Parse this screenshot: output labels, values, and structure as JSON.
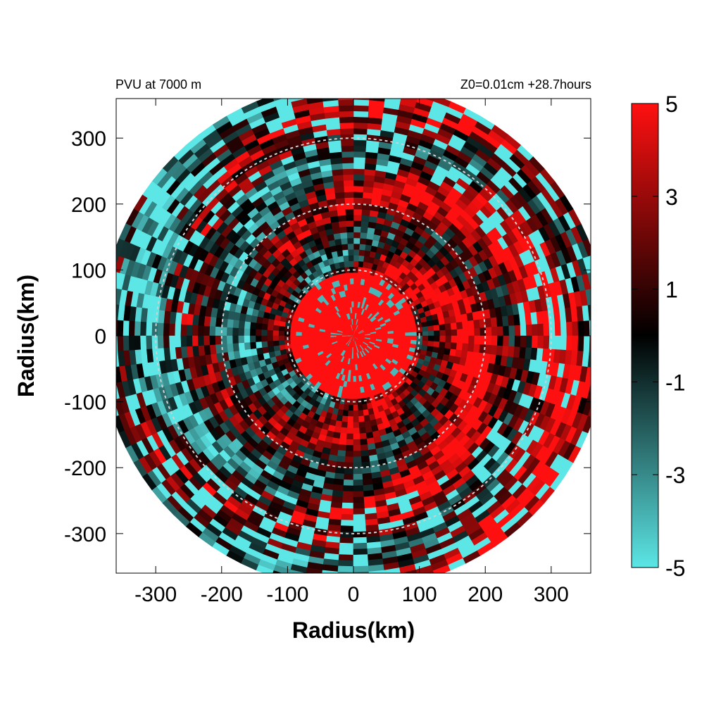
{
  "chart_data": {
    "type": "heatmap",
    "title_left": "PVU at  7000 m",
    "title_right": "Z0=0.01cm  +28.7hours",
    "xlabel": "Radius(km)",
    "ylabel": "Radius(km)",
    "xlim": [
      -360,
      360
    ],
    "ylim": [
      -360,
      360
    ],
    "x_ticks": [
      -300,
      -200,
      -100,
      0,
      100,
      200,
      300
    ],
    "y_ticks": [
      300,
      200,
      100,
      0,
      -100,
      -200,
      -300
    ],
    "x_tick_labels": [
      "-300",
      "-200",
      "-100",
      "0",
      "100",
      "200",
      "300"
    ],
    "y_tick_labels": [
      "300",
      "200",
      "100",
      "0",
      "-100",
      "-200",
      "-300"
    ],
    "domain_radius_km": 385,
    "reference_circles_km": [
      100,
      200,
      300
    ],
    "grid": false,
    "colorbar": {
      "range": [
        -5,
        5
      ],
      "tick_labels": [
        "5",
        "3",
        "1",
        "-1",
        "-3",
        "-5"
      ],
      "tick_values": [
        5,
        3,
        1,
        -1,
        -3,
        -5
      ],
      "colors": {
        "min": "#5ce6e6",
        "mid": "#000000",
        "max": "#ff1010"
      }
    }
  }
}
